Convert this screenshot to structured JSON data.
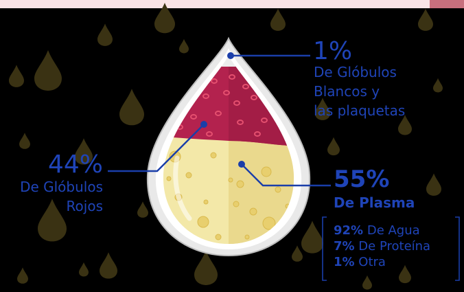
{
  "colors": {
    "background": "#000000",
    "label_blue": "#1f44b8",
    "leader_line": "#1a3ea9",
    "red_cells": "#b3224e",
    "plasma": "#f2e6a3",
    "white_cells": "#ececec",
    "drop_outline": "#c9c9c9",
    "background_drops": "#3a3213"
  },
  "white_cells": {
    "percent": "1%",
    "lines": [
      "De Glóbulos",
      "Blancos y",
      "las plaquetas"
    ],
    "share": 0.01
  },
  "red_cells": {
    "percent": "44%",
    "lines": [
      "De Glóbulos",
      "Rojos"
    ],
    "share": 0.44
  },
  "plasma": {
    "percent": "55%",
    "name": "De Plasma",
    "share": 0.55,
    "components": [
      {
        "value": "92%",
        "label": "De Agua"
      },
      {
        "value": "7%",
        "label": "De Proteína"
      },
      {
        "value": "1%",
        "label": "Otra"
      }
    ]
  },
  "icons": [
    "blood-drop-icon",
    "background-drop-icon"
  ]
}
